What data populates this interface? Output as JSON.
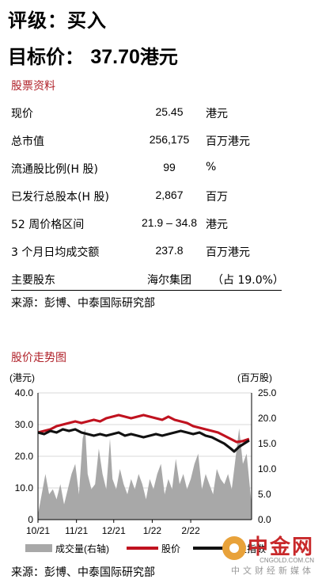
{
  "header": {
    "rating": "评级：买入",
    "target_label": "目标价：",
    "target_value": "37.70",
    "target_unit": "港元"
  },
  "stock_info": {
    "title": "股票资料",
    "rows": [
      {
        "label": "现价",
        "value": "25.45",
        "unit": "港元"
      },
      {
        "label": "总市值",
        "value": "256,175",
        "unit": "百万港元"
      },
      {
        "label": "流通股比例(H 股)",
        "value": "99",
        "unit": "%"
      },
      {
        "label": "已发行总股本(H 股)",
        "value": "2,867",
        "unit": "百万"
      },
      {
        "label": "52 周价格区间",
        "value": "21.9 – 34.8",
        "unit": "港元"
      },
      {
        "label": "3 个月日均成交额",
        "value": "237.8",
        "unit": "百万港元"
      },
      {
        "label": "主要股东",
        "value": "海尔集团",
        "unit": "（占 19.0%）"
      }
    ],
    "source": "来源：彭博、中泰国际研究部"
  },
  "trend": {
    "title": "股价走势图",
    "source": "来源：彭博、中泰国际研究部"
  },
  "chart_data": {
    "type": "line",
    "title": "股价走势图",
    "y_left_label": "(港元)",
    "y_right_label": "(百万股)",
    "y_left_lim": [
      0,
      40
    ],
    "y_right_lim": [
      0,
      25
    ],
    "y_left_ticks": [
      "0",
      "10.0",
      "20.0",
      "30.0",
      "40.0"
    ],
    "y_right_ticks": [
      "0.0",
      "5.0",
      "10.0",
      "15.0",
      "20.0",
      "25.0"
    ],
    "x_ticks": [
      "10/21",
      "11/21",
      "12/21",
      "1/22",
      "2/22"
    ],
    "x_tick_days": [
      0,
      31,
      61,
      92,
      123
    ],
    "x_end_day": 172,
    "grid": true,
    "legend": [
      "成交量(右轴)",
      "股价",
      "恒生指数"
    ],
    "legend_position": "bottom",
    "colors": {
      "volume": "#a8a8a8",
      "price": "#c0121f",
      "index": "#111111"
    },
    "series": [
      {
        "name": "股价",
        "axis": "left",
        "points": [
          [
            0,
            27.5
          ],
          [
            5,
            28.0
          ],
          [
            10,
            28.5
          ],
          [
            15,
            29.5
          ],
          [
            20,
            30.0
          ],
          [
            25,
            30.5
          ],
          [
            30,
            31.0
          ],
          [
            35,
            30.5
          ],
          [
            40,
            31.0
          ],
          [
            45,
            31.5
          ],
          [
            50,
            31.0
          ],
          [
            55,
            32.0
          ],
          [
            60,
            32.5
          ],
          [
            65,
            33.0
          ],
          [
            70,
            32.5
          ],
          [
            75,
            32.0
          ],
          [
            80,
            32.5
          ],
          [
            85,
            33.0
          ],
          [
            90,
            32.5
          ],
          [
            95,
            32.0
          ],
          [
            100,
            31.5
          ],
          [
            105,
            32.5
          ],
          [
            110,
            31.5
          ],
          [
            115,
            31.0
          ],
          [
            120,
            30.5
          ],
          [
            125,
            29.5
          ],
          [
            130,
            29.0
          ],
          [
            135,
            28.5
          ],
          [
            140,
            28.0
          ],
          [
            145,
            27.5
          ],
          [
            150,
            26.5
          ],
          [
            155,
            25.5
          ],
          [
            160,
            24.5
          ],
          [
            165,
            24.8
          ],
          [
            170,
            25.45
          ]
        ]
      },
      {
        "name": "恒生指数",
        "axis": "left",
        "points": [
          [
            0,
            27.5
          ],
          [
            5,
            27.0
          ],
          [
            10,
            28.0
          ],
          [
            15,
            27.5
          ],
          [
            20,
            28.5
          ],
          [
            25,
            28.0
          ],
          [
            30,
            28.5
          ],
          [
            35,
            27.5
          ],
          [
            40,
            27.0
          ],
          [
            45,
            26.5
          ],
          [
            50,
            27.0
          ],
          [
            55,
            26.5
          ],
          [
            60,
            27.0
          ],
          [
            65,
            27.5
          ],
          [
            70,
            26.5
          ],
          [
            75,
            27.0
          ],
          [
            80,
            26.5
          ],
          [
            85,
            26.0
          ],
          [
            90,
            26.5
          ],
          [
            95,
            27.0
          ],
          [
            100,
            26.5
          ],
          [
            105,
            27.0
          ],
          [
            110,
            27.5
          ],
          [
            115,
            28.0
          ],
          [
            120,
            27.5
          ],
          [
            125,
            27.0
          ],
          [
            130,
            27.5
          ],
          [
            135,
            26.5
          ],
          [
            140,
            26.0
          ],
          [
            145,
            25.0
          ],
          [
            150,
            24.0
          ],
          [
            155,
            22.5
          ],
          [
            158,
            21.5
          ],
          [
            162,
            23.0
          ],
          [
            166,
            24.0
          ],
          [
            170,
            25.0
          ]
        ]
      },
      {
        "name": "成交量(右轴)",
        "axis": "right",
        "type": "area",
        "points": [
          [
            0,
            1
          ],
          [
            3,
            5
          ],
          [
            6,
            9
          ],
          [
            9,
            5
          ],
          [
            12,
            6
          ],
          [
            15,
            4
          ],
          [
            18,
            7
          ],
          [
            21,
            3
          ],
          [
            24,
            6
          ],
          [
            27,
            9
          ],
          [
            30,
            11
          ],
          [
            33,
            5
          ],
          [
            36,
            16
          ],
          [
            38,
            18
          ],
          [
            40,
            9
          ],
          [
            43,
            6
          ],
          [
            46,
            7
          ],
          [
            49,
            14
          ],
          [
            52,
            9
          ],
          [
            55,
            6
          ],
          [
            58,
            16
          ],
          [
            60,
            8
          ],
          [
            63,
            6
          ],
          [
            66,
            10
          ],
          [
            69,
            7
          ],
          [
            72,
            5
          ],
          [
            75,
            8
          ],
          [
            78,
            6
          ],
          [
            81,
            9
          ],
          [
            84,
            7
          ],
          [
            87,
            4
          ],
          [
            90,
            8
          ],
          [
            93,
            6
          ],
          [
            96,
            9
          ],
          [
            99,
            11
          ],
          [
            102,
            5
          ],
          [
            105,
            8
          ],
          [
            108,
            6
          ],
          [
            111,
            12
          ],
          [
            114,
            7
          ],
          [
            117,
            9
          ],
          [
            120,
            6
          ],
          [
            123,
            8
          ],
          [
            126,
            11
          ],
          [
            129,
            13
          ],
          [
            132,
            6
          ],
          [
            135,
            9
          ],
          [
            138,
            7
          ],
          [
            141,
            5
          ],
          [
            144,
            10
          ],
          [
            147,
            8
          ],
          [
            150,
            7
          ],
          [
            153,
            9
          ],
          [
            156,
            6
          ],
          [
            159,
            12
          ],
          [
            162,
            18
          ],
          [
            165,
            11
          ],
          [
            168,
            13
          ],
          [
            172,
            3
          ]
        ]
      }
    ]
  }
}
